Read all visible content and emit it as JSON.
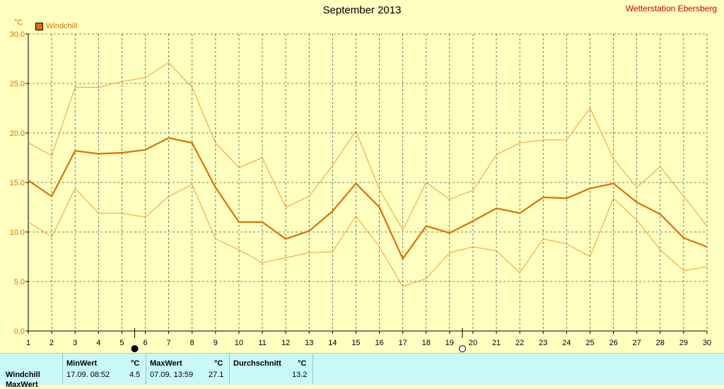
{
  "chart_data": {
    "type": "line",
    "title": "September 2013",
    "station": "Wetterstation Ebersberg",
    "unit": "°C",
    "legend": "Windchill",
    "x": [
      1,
      2,
      3,
      4,
      5,
      6,
      7,
      8,
      9,
      10,
      11,
      12,
      13,
      14,
      15,
      16,
      17,
      18,
      19,
      20,
      21,
      22,
      23,
      24,
      25,
      26,
      27,
      28,
      29,
      30
    ],
    "xticks": [
      "1",
      "2",
      "3",
      "4",
      "5",
      "6",
      "7",
      "8",
      "9",
      "10",
      "11",
      "12",
      "13",
      "14",
      "15",
      "16",
      "17",
      "18",
      "19",
      "20",
      "21",
      "22",
      "23",
      "24",
      "25",
      "26",
      "27",
      "28",
      "29",
      "30"
    ],
    "yticks": [
      "0.0",
      "5.0",
      "10.0",
      "15.0",
      "20.0",
      "25.0",
      "30.0"
    ],
    "ylim": [
      0,
      30
    ],
    "grid": true,
    "series": [
      {
        "name": "Windchill",
        "values": [
          15.2,
          13.6,
          18.2,
          17.9,
          18.0,
          18.3,
          19.5,
          19.0,
          14.5,
          11.0,
          11.0,
          9.3,
          10.1,
          12.1,
          14.9,
          12.5,
          7.3,
          10.6,
          9.9,
          11.1,
          12.4,
          11.9,
          13.5,
          13.4,
          14.4,
          14.9,
          13.0,
          11.8,
          9.4,
          8.5
        ],
        "color": "#e07000",
        "width": 2.2
      },
      {
        "name": "",
        "values": [
          19.0,
          17.7,
          24.6,
          24.6,
          25.2,
          25.6,
          27.1,
          24.6,
          19.0,
          16.5,
          17.5,
          12.5,
          13.6,
          16.7,
          20.2,
          14.3,
          10.2,
          15.0,
          13.3,
          14.2,
          17.8,
          19.0,
          19.3,
          19.3,
          22.5,
          17.4,
          14.5,
          16.6,
          13.6,
          10.6
        ],
        "color": "#f0a030",
        "width": 1
      },
      {
        "name": "",
        "values": [
          11.0,
          9.5,
          14.4,
          11.9,
          11.9,
          11.5,
          13.6,
          14.8,
          9.3,
          8.2,
          6.9,
          7.4,
          7.9,
          8.0,
          11.6,
          8.5,
          4.5,
          5.3,
          7.9,
          8.5,
          8.1,
          5.9,
          9.3,
          8.8,
          7.5,
          13.4,
          11.2,
          8.2,
          6.1,
          6.5
        ],
        "color": "#f0a030",
        "width": 1
      }
    ],
    "moon_markers": [
      {
        "day_label": "6",
        "phase": "new-moon-icon"
      },
      {
        "day_label": "20",
        "phase": "full-moon-icon"
      }
    ]
  },
  "stats": {
    "row_label": "Windchill",
    "row_label_2": "MaxWert",
    "min_header": "MinWert",
    "min_unit": "°C",
    "min_time": "17.09.  08:52",
    "min_value": "4.5",
    "max_header": "MaxWert",
    "max_unit": "°C",
    "max_time": "07.09.  13:59",
    "max_value": "27.1",
    "avg_header": "Durchschnitt",
    "avg_unit": "°C",
    "avg_value": "13.2"
  }
}
